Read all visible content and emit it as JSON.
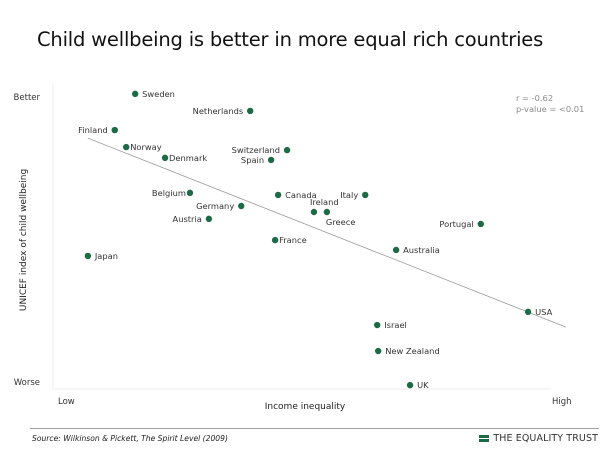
{
  "title": "Child wellbeing is better in more equal rich countries",
  "footer": {
    "source": "Source: Wilkinson & Pickett, The Spirit Level (2009)",
    "brand": "THE EQUALITY TRUST",
    "brand_icon": "equals-bars-icon"
  },
  "colors": {
    "point": "#1d6b45",
    "trendline": "#9a9a9a",
    "axis": "#eeeeee",
    "brand": "#1d6b45"
  },
  "chart_data": {
    "type": "scatter",
    "title": "Child wellbeing is better in more equal rich countries",
    "xlabel": "Income inequality",
    "ylabel": "UNICEF index of child wellbeing",
    "x_tick_labels": {
      "low": "Low",
      "high": "High"
    },
    "y_tick_labels": {
      "high": "Better",
      "low": "Worse"
    },
    "xlim": [
      0,
      10
    ],
    "ylim": [
      0,
      10
    ],
    "units_note": "relative scale (Low→High, Worse→Better)",
    "grid": false,
    "stats": {
      "r": "r = -0.62",
      "p": "p-value = <0.01"
    },
    "trendline": {
      "x": [
        0.7,
        10.3
      ],
      "y": [
        8.39,
        2.07
      ]
    },
    "points": [
      {
        "name": "Sweden",
        "x": 1.65,
        "y": 9.87,
        "label_pos": "right"
      },
      {
        "name": "Netherlands",
        "x": 3.96,
        "y": 9.3,
        "label_pos": "left"
      },
      {
        "name": "Finland",
        "x": 1.24,
        "y": 8.66,
        "label_pos": "left"
      },
      {
        "name": "Norway",
        "x": 1.47,
        "y": 8.09,
        "label_pos": "right"
      },
      {
        "name": "Switzerland",
        "x": 4.7,
        "y": 7.99,
        "label_pos": "left"
      },
      {
        "name": "Denmark",
        "x": 2.25,
        "y": 7.73,
        "label_pos": "right"
      },
      {
        "name": "Spain",
        "x": 4.38,
        "y": 7.66,
        "label_pos": "left"
      },
      {
        "name": "Belgium",
        "x": 2.75,
        "y": 6.56,
        "label_pos": "left"
      },
      {
        "name": "Canada",
        "x": 4.52,
        "y": 6.49,
        "label_pos": "right"
      },
      {
        "name": "Italy",
        "x": 6.27,
        "y": 6.49,
        "label_pos": "left"
      },
      {
        "name": "Germany",
        "x": 3.78,
        "y": 6.12,
        "label_pos": "left"
      },
      {
        "name": "Ireland",
        "x": 5.24,
        "y": 5.92,
        "label_pos": "above"
      },
      {
        "name": "Greece",
        "x": 5.5,
        "y": 5.92,
        "label_pos": "below-right"
      },
      {
        "name": "Austria",
        "x": 3.13,
        "y": 5.69,
        "label_pos": "left"
      },
      {
        "name": "Portugal",
        "x": 8.59,
        "y": 5.52,
        "label_pos": "left"
      },
      {
        "name": "France",
        "x": 4.46,
        "y": 4.98,
        "label_pos": "right"
      },
      {
        "name": "Australia",
        "x": 6.89,
        "y": 4.65,
        "label_pos": "right"
      },
      {
        "name": "Japan",
        "x": 0.7,
        "y": 4.45,
        "label_pos": "right"
      },
      {
        "name": "USA",
        "x": 9.54,
        "y": 2.58,
        "label_pos": "right"
      },
      {
        "name": "Israel",
        "x": 6.51,
        "y": 2.14,
        "label_pos": "right"
      },
      {
        "name": "New Zealand",
        "x": 6.53,
        "y": 1.27,
        "label_pos": "right"
      },
      {
        "name": "UK",
        "x": 7.17,
        "y": 0.13,
        "label_pos": "right"
      }
    ]
  }
}
